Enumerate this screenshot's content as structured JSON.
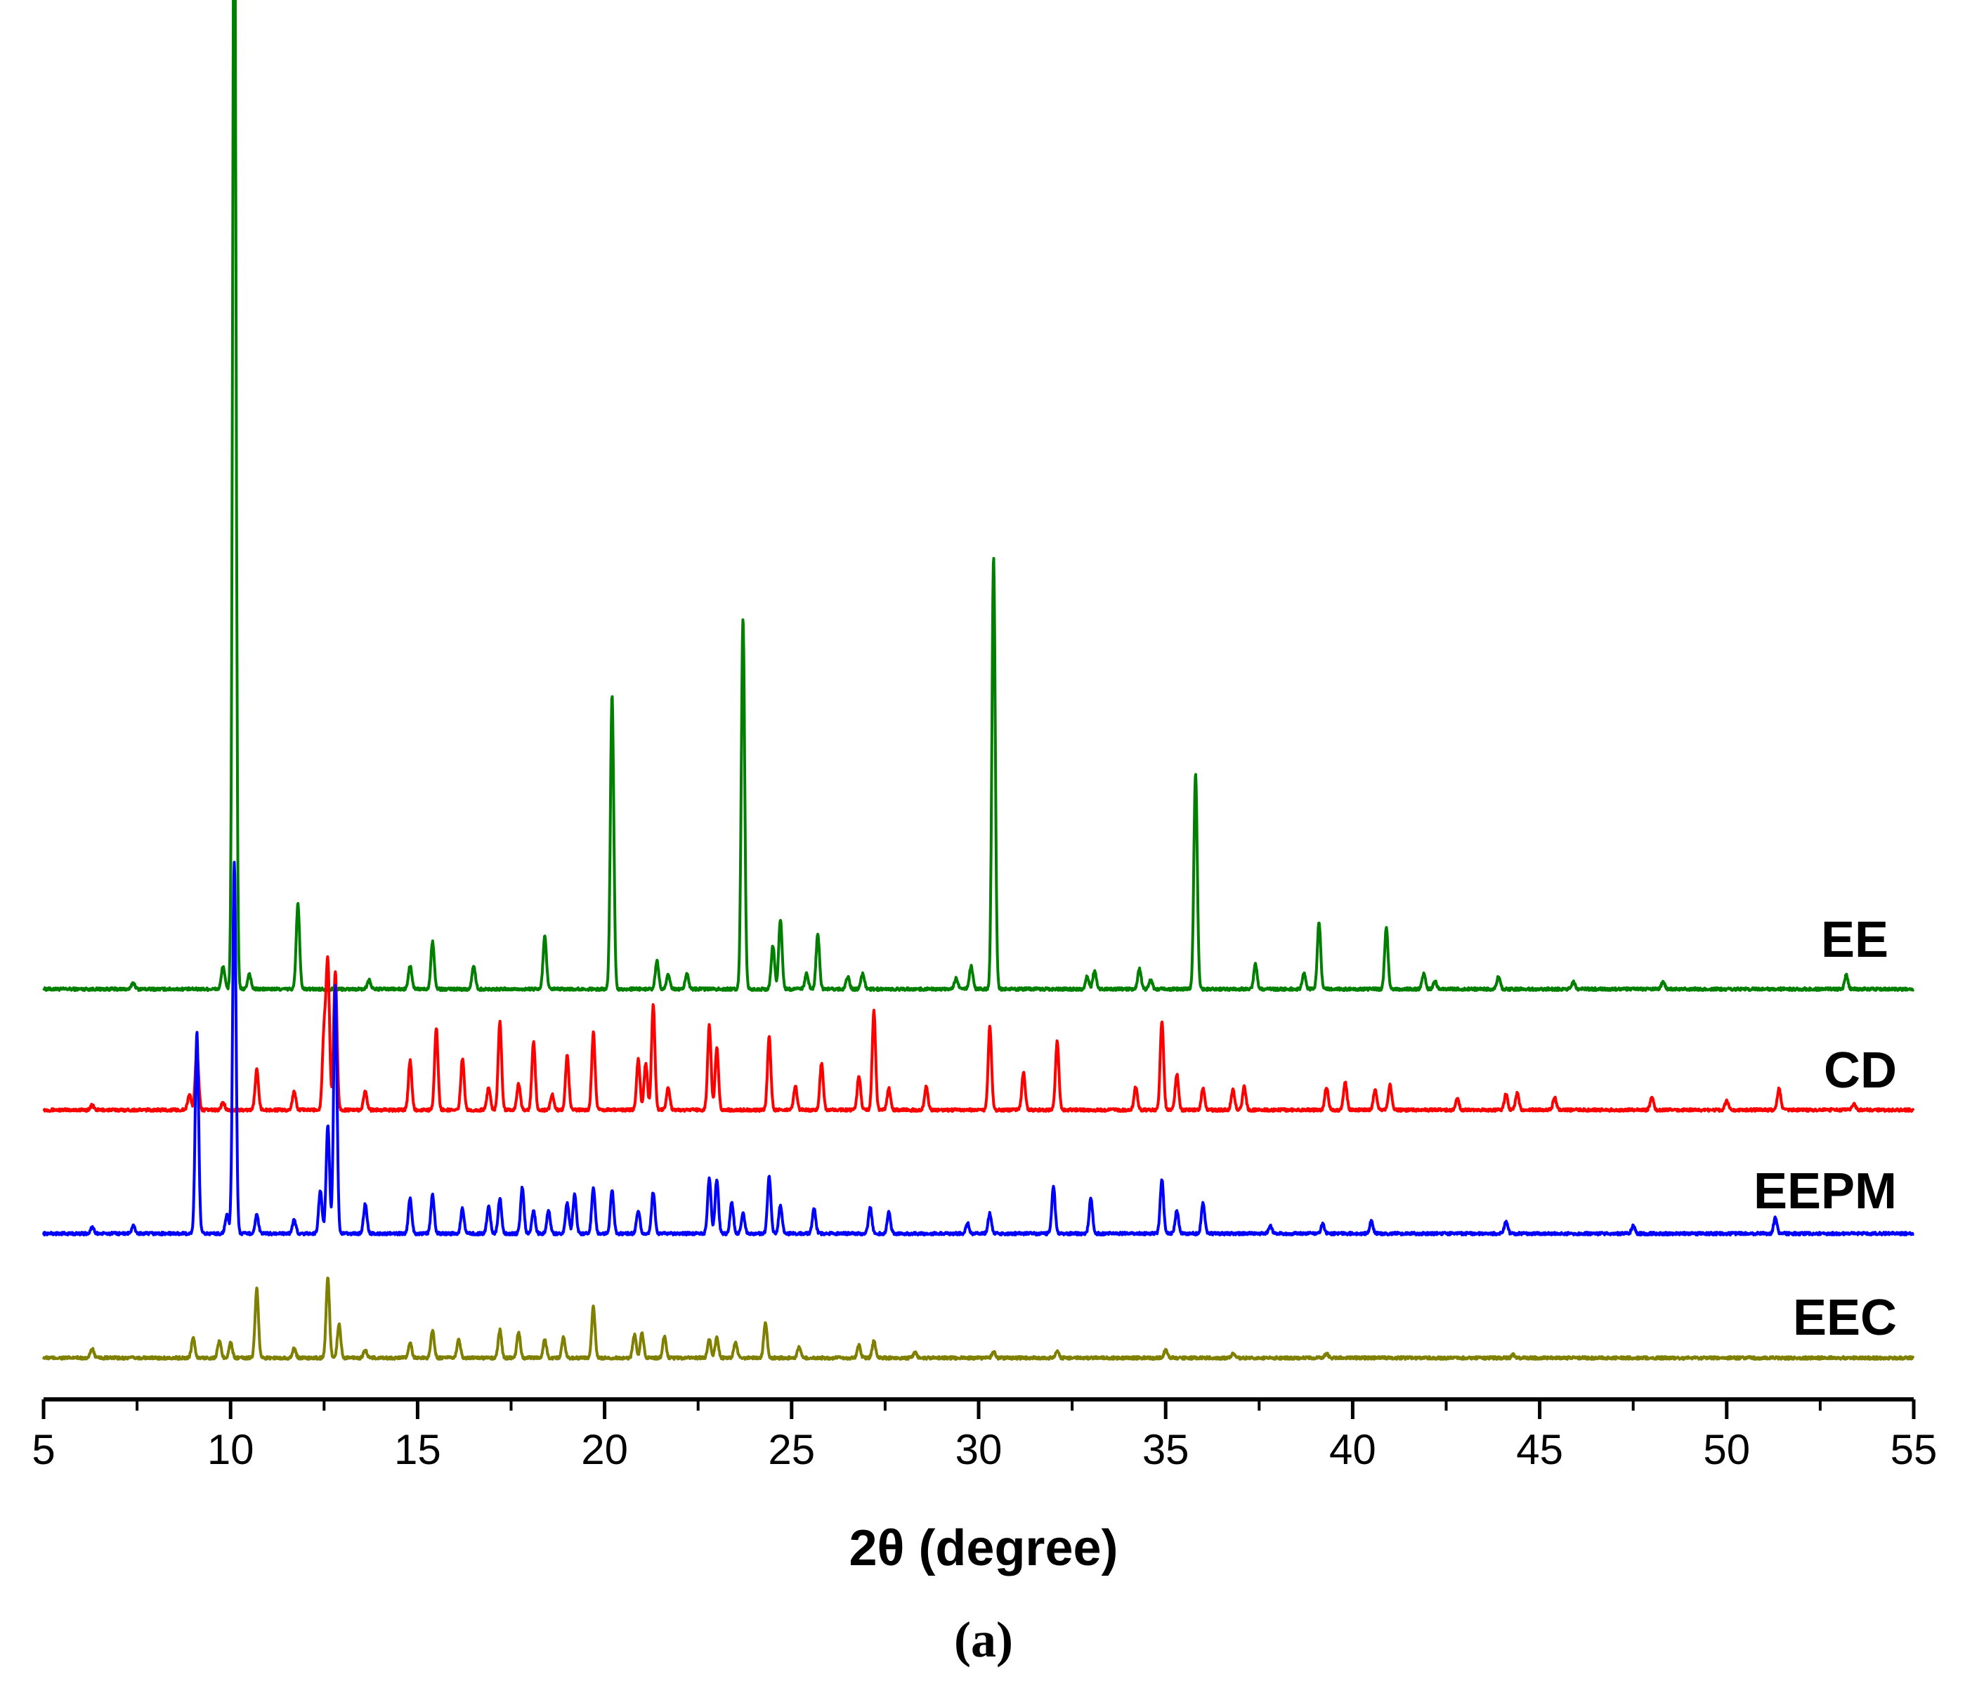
{
  "chart_data": {
    "type": "line",
    "title": "",
    "xlabel": "2θ (degree)",
    "ylabel": "",
    "xlim": [
      5,
      55
    ],
    "x_ticks": [
      "5",
      "10",
      "15",
      "20",
      "25",
      "30",
      "35",
      "40",
      "45",
      "50",
      "55"
    ],
    "grid": false,
    "legend": "series labels at right end of each trace",
    "caption": "(a)",
    "series": [
      {
        "name": "EE",
        "color": "#007f00",
        "baseline_rank": 4,
        "peaks": [
          [
            7.4,
            0.4
          ],
          [
            9.8,
            1.5
          ],
          [
            10.1,
            76.0
          ],
          [
            10.5,
            1.0
          ],
          [
            11.8,
            5.5
          ],
          [
            13.7,
            0.6
          ],
          [
            14.8,
            1.5
          ],
          [
            15.4,
            3.1
          ],
          [
            16.5,
            1.5
          ],
          [
            18.4,
            3.4
          ],
          [
            20.2,
            19.0
          ],
          [
            21.4,
            1.8
          ],
          [
            21.7,
            0.9
          ],
          [
            22.2,
            1.0
          ],
          [
            23.7,
            24.0
          ],
          [
            24.5,
            2.8
          ],
          [
            24.7,
            4.5
          ],
          [
            25.4,
            1.0
          ],
          [
            25.7,
            3.6
          ],
          [
            26.5,
            0.8
          ],
          [
            26.9,
            1.0
          ],
          [
            29.4,
            0.7
          ],
          [
            29.8,
            1.5
          ],
          [
            30.4,
            28.0
          ],
          [
            32.9,
            0.8
          ],
          [
            33.1,
            1.2
          ],
          [
            34.3,
            1.3
          ],
          [
            34.6,
            0.6
          ],
          [
            35.8,
            14.0
          ],
          [
            37.4,
            1.6
          ],
          [
            38.7,
            1.0
          ],
          [
            39.1,
            4.3
          ],
          [
            40.9,
            4.0
          ],
          [
            41.9,
            1.0
          ],
          [
            42.2,
            0.5
          ],
          [
            43.9,
            0.8
          ],
          [
            45.9,
            0.5
          ],
          [
            48.3,
            0.5
          ],
          [
            53.2,
            0.9
          ]
        ]
      },
      {
        "name": "CD",
        "color": "#ff0000",
        "baseline_rank": 3,
        "peaks": [
          [
            6.3,
            0.3
          ],
          [
            8.9,
            1.0
          ],
          [
            9.1,
            3.8
          ],
          [
            9.8,
            0.5
          ],
          [
            10.7,
            2.6
          ],
          [
            11.7,
            1.2
          ],
          [
            12.5,
            5.0
          ],
          [
            12.6,
            9.5
          ],
          [
            12.8,
            9.0
          ],
          [
            13.6,
            1.2
          ],
          [
            14.8,
            3.2
          ],
          [
            15.5,
            5.3
          ],
          [
            16.2,
            3.3
          ],
          [
            16.9,
            1.5
          ],
          [
            17.2,
            5.7
          ],
          [
            17.7,
            1.7
          ],
          [
            18.1,
            4.4
          ],
          [
            18.6,
            1.0
          ],
          [
            19.0,
            3.5
          ],
          [
            19.7,
            5.0
          ],
          [
            20.9,
            3.3
          ],
          [
            21.1,
            3.0
          ],
          [
            21.3,
            6.8
          ],
          [
            21.7,
            1.5
          ],
          [
            22.8,
            5.5
          ],
          [
            23.0,
            4.0
          ],
          [
            24.4,
            4.7
          ],
          [
            25.1,
            1.5
          ],
          [
            25.8,
            3.0
          ],
          [
            26.8,
            2.2
          ],
          [
            27.2,
            6.4
          ],
          [
            27.6,
            1.4
          ],
          [
            28.6,
            1.5
          ],
          [
            30.3,
            5.4
          ],
          [
            31.2,
            2.4
          ],
          [
            32.1,
            4.5
          ],
          [
            34.2,
            1.5
          ],
          [
            34.9,
            5.8
          ],
          [
            35.3,
            2.3
          ],
          [
            36.0,
            1.4
          ],
          [
            36.8,
            1.3
          ],
          [
            37.1,
            1.5
          ],
          [
            39.3,
            1.5
          ],
          [
            39.8,
            1.8
          ],
          [
            40.6,
            1.3
          ],
          [
            41.0,
            1.6
          ],
          [
            42.8,
            0.7
          ],
          [
            44.1,
            1.0
          ],
          [
            44.4,
            1.1
          ],
          [
            45.4,
            0.8
          ],
          [
            48.0,
            0.8
          ],
          [
            50.0,
            0.6
          ],
          [
            51.4,
            1.4
          ],
          [
            53.4,
            0.4
          ]
        ]
      },
      {
        "name": "EEPM",
        "color": "#0000ff",
        "baseline_rank": 2,
        "peaks": [
          [
            6.3,
            0.4
          ],
          [
            7.4,
            0.5
          ],
          [
            9.1,
            13.0
          ],
          [
            9.9,
            1.2
          ],
          [
            10.1,
            24.0
          ],
          [
            10.7,
            1.2
          ],
          [
            11.7,
            0.9
          ],
          [
            12.4,
            2.8
          ],
          [
            12.6,
            7.0
          ],
          [
            12.8,
            16.0
          ],
          [
            13.6,
            1.9
          ],
          [
            14.8,
            2.3
          ],
          [
            15.4,
            2.5
          ],
          [
            16.2,
            1.6
          ],
          [
            16.9,
            1.8
          ],
          [
            17.2,
            2.3
          ],
          [
            17.8,
            3.0
          ],
          [
            18.1,
            1.5
          ],
          [
            18.5,
            1.5
          ],
          [
            19.0,
            2.0
          ],
          [
            19.2,
            2.5
          ],
          [
            19.7,
            3.0
          ],
          [
            20.2,
            2.8
          ],
          [
            20.9,
            1.5
          ],
          [
            21.3,
            2.7
          ],
          [
            22.8,
            3.6
          ],
          [
            23.0,
            3.5
          ],
          [
            23.4,
            2.0
          ],
          [
            23.7,
            1.3
          ],
          [
            24.4,
            3.7
          ],
          [
            24.7,
            1.8
          ],
          [
            25.6,
            1.6
          ],
          [
            27.1,
            1.7
          ],
          [
            27.6,
            1.4
          ],
          [
            29.7,
            0.7
          ],
          [
            30.3,
            1.3
          ],
          [
            32.0,
            3.0
          ],
          [
            33.0,
            2.3
          ],
          [
            34.9,
            3.5
          ],
          [
            35.3,
            1.5
          ],
          [
            36.0,
            2.0
          ],
          [
            37.8,
            0.5
          ],
          [
            39.2,
            0.6
          ],
          [
            40.5,
            0.8
          ],
          [
            44.1,
            0.8
          ],
          [
            47.5,
            0.5
          ],
          [
            51.3,
            1.0
          ]
        ]
      },
      {
        "name": "EEC",
        "color": "#7f7f00",
        "baseline_rank": 1,
        "peaks": [
          [
            6.3,
            0.6
          ],
          [
            9.0,
            1.3
          ],
          [
            9.7,
            1.1
          ],
          [
            10.0,
            1.0
          ],
          [
            10.7,
            4.5
          ],
          [
            11.7,
            0.6
          ],
          [
            12.6,
            5.2
          ],
          [
            12.9,
            2.2
          ],
          [
            13.6,
            0.5
          ],
          [
            14.8,
            1.0
          ],
          [
            15.4,
            1.8
          ],
          [
            16.1,
            1.2
          ],
          [
            17.2,
            1.8
          ],
          [
            17.7,
            1.7
          ],
          [
            18.4,
            1.2
          ],
          [
            18.9,
            1.3
          ],
          [
            19.7,
            3.3
          ],
          [
            20.8,
            1.5
          ],
          [
            21.0,
            1.6
          ],
          [
            21.6,
            1.4
          ],
          [
            22.8,
            1.2
          ],
          [
            23.0,
            1.3
          ],
          [
            23.5,
            1.0
          ],
          [
            24.3,
            2.3
          ],
          [
            25.2,
            0.7
          ],
          [
            26.8,
            0.8
          ],
          [
            27.2,
            1.1
          ],
          [
            28.3,
            0.4
          ],
          [
            30.4,
            0.4
          ],
          [
            32.1,
            0.4
          ],
          [
            35.0,
            0.5
          ],
          [
            36.8,
            0.3
          ],
          [
            39.3,
            0.3
          ],
          [
            44.3,
            0.2
          ]
        ]
      }
    ],
    "colors": {
      "axis": "#000000",
      "background": "#ffffff"
    }
  }
}
